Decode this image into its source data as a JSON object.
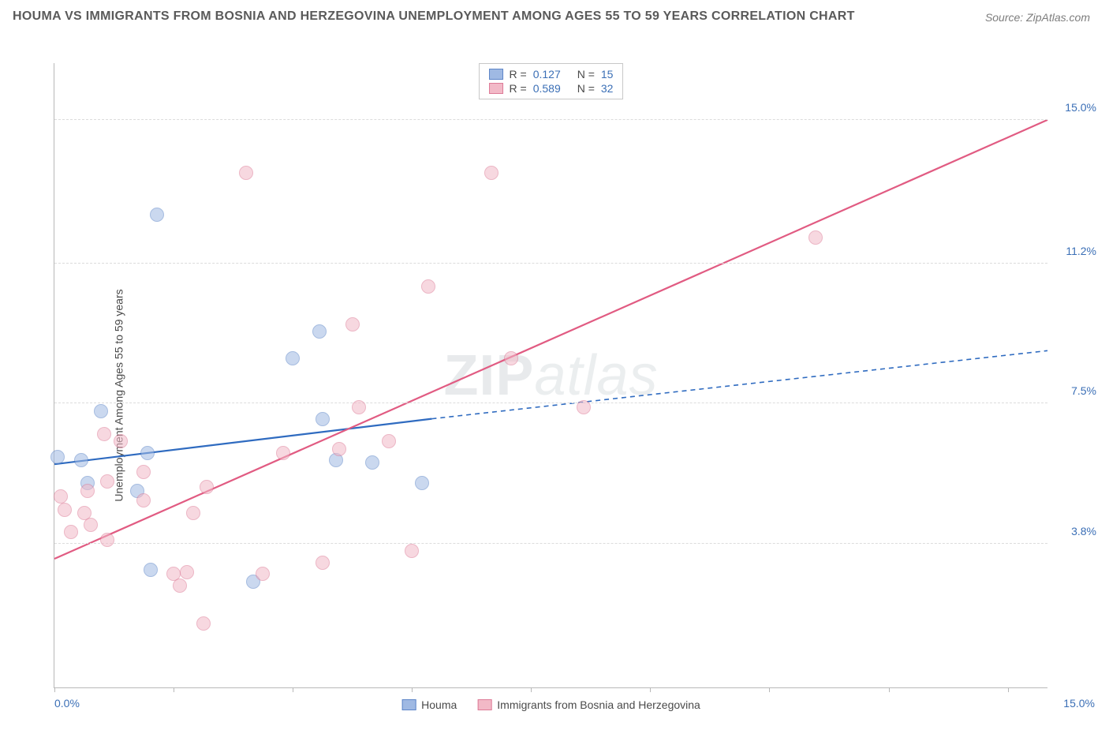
{
  "header": {
    "title": "HOUMA VS IMMIGRANTS FROM BOSNIA AND HERZEGOVINA UNEMPLOYMENT AMONG AGES 55 TO 59 YEARS CORRELATION CHART",
    "source": "Source: ZipAtlas.com"
  },
  "watermark": {
    "part1": "ZIP",
    "part2": "atlas"
  },
  "chart": {
    "type": "scatter",
    "y_axis_title": "Unemployment Among Ages 55 to 59 years",
    "xlim": [
      0,
      15
    ],
    "ylim": [
      0,
      16.5
    ],
    "x_labels": {
      "min": "0.0%",
      "max": "15.0%"
    },
    "x_ticks_pct": [
      0,
      12,
      24,
      36,
      48,
      60,
      72,
      84,
      96
    ],
    "y_ticks": [
      {
        "value": 3.8,
        "label": "3.8%"
      },
      {
        "value": 7.5,
        "label": "7.5%"
      },
      {
        "value": 11.2,
        "label": "11.2%"
      },
      {
        "value": 15.0,
        "label": "15.0%"
      }
    ],
    "background_color": "#ffffff",
    "grid_color": "#dcdcdc",
    "axis_color": "#b8b8b8",
    "label_color": "#3b6fb6",
    "point_radius": 9,
    "point_opacity": 0.55,
    "series": [
      {
        "name": "Houma",
        "fill_color": "#9fb9e3",
        "stroke_color": "#5e86c8",
        "trend_color": "#2f6bc0",
        "R": "0.127",
        "N": "15",
        "trend": {
          "x1": 0,
          "y1": 5.9,
          "x2_solid": 5.7,
          "y2_solid": 7.1,
          "x2": 15,
          "y2": 8.9
        },
        "points": [
          {
            "x": 0.05,
            "y": 6.1
          },
          {
            "x": 0.4,
            "y": 6.0
          },
          {
            "x": 0.5,
            "y": 5.4
          },
          {
            "x": 0.7,
            "y": 7.3
          },
          {
            "x": 1.55,
            "y": 12.5
          },
          {
            "x": 1.25,
            "y": 5.2
          },
          {
            "x": 1.45,
            "y": 3.1
          },
          {
            "x": 1.4,
            "y": 6.2
          },
          {
            "x": 3.0,
            "y": 2.8
          },
          {
            "x": 3.6,
            "y": 8.7
          },
          {
            "x": 4.05,
            "y": 7.1
          },
          {
            "x": 4.25,
            "y": 6.0
          },
          {
            "x": 4.8,
            "y": 5.95
          },
          {
            "x": 5.55,
            "y": 5.4
          },
          {
            "x": 4.0,
            "y": 9.4
          }
        ]
      },
      {
        "name": "Immigrants from Bosnia and Herzegovina",
        "fill_color": "#f2b9c7",
        "stroke_color": "#dd7b97",
        "trend_color": "#e15b82",
        "R": "0.589",
        "N": "32",
        "trend": {
          "x1": 0,
          "y1": 3.4,
          "x2_solid": 15,
          "y2_solid": 15.0,
          "x2": 15,
          "y2": 15.0
        },
        "points": [
          {
            "x": 0.1,
            "y": 5.05
          },
          {
            "x": 0.15,
            "y": 4.7
          },
          {
            "x": 0.25,
            "y": 4.1
          },
          {
            "x": 0.45,
            "y": 4.6
          },
          {
            "x": 0.55,
            "y": 4.3
          },
          {
            "x": 0.5,
            "y": 5.2
          },
          {
            "x": 0.8,
            "y": 3.9
          },
          {
            "x": 0.75,
            "y": 6.7
          },
          {
            "x": 1.35,
            "y": 5.7
          },
          {
            "x": 1.35,
            "y": 4.95
          },
          {
            "x": 1.8,
            "y": 3.0
          },
          {
            "x": 1.9,
            "y": 2.7
          },
          {
            "x": 2.0,
            "y": 3.05
          },
          {
            "x": 2.25,
            "y": 1.7
          },
          {
            "x": 2.1,
            "y": 4.6
          },
          {
            "x": 2.9,
            "y": 13.6
          },
          {
            "x": 3.15,
            "y": 3.0
          },
          {
            "x": 3.45,
            "y": 6.2
          },
          {
            "x": 4.05,
            "y": 3.3
          },
          {
            "x": 4.3,
            "y": 6.3
          },
          {
            "x": 4.5,
            "y": 9.6
          },
          {
            "x": 4.6,
            "y": 7.4
          },
          {
            "x": 5.05,
            "y": 6.5
          },
          {
            "x": 5.4,
            "y": 3.6
          },
          {
            "x": 5.65,
            "y": 10.6
          },
          {
            "x": 6.6,
            "y": 13.6
          },
          {
            "x": 6.9,
            "y": 8.7
          },
          {
            "x": 8.0,
            "y": 7.4
          },
          {
            "x": 11.5,
            "y": 11.9
          },
          {
            "x": 1.0,
            "y": 6.5
          },
          {
            "x": 0.8,
            "y": 5.45
          },
          {
            "x": 2.3,
            "y": 5.3
          }
        ]
      }
    ],
    "legend": {
      "r_label": "R =",
      "n_label": "N ="
    },
    "bottom_legend": [
      {
        "label": "Houma",
        "fill": "#9fb9e3",
        "stroke": "#5e86c8"
      },
      {
        "label": "Immigrants from Bosnia and Herzegovina",
        "fill": "#f2b9c7",
        "stroke": "#dd7b97"
      }
    ]
  }
}
